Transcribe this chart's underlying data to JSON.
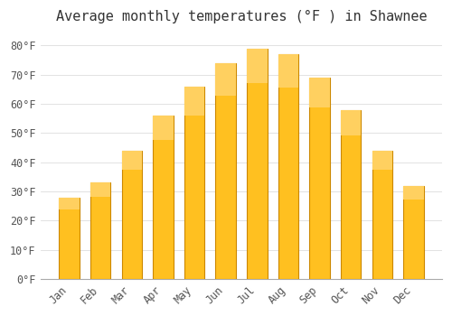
{
  "title": "Average monthly temperatures (°F ) in Shawnee",
  "months": [
    "Jan",
    "Feb",
    "Mar",
    "Apr",
    "May",
    "Jun",
    "Jul",
    "Aug",
    "Sep",
    "Oct",
    "Nov",
    "Dec"
  ],
  "values": [
    28,
    33,
    44,
    56,
    66,
    74,
    79,
    77,
    69,
    58,
    44,
    32
  ],
  "bar_color_top": "#FFA500",
  "bar_color_bottom": "#FFB732",
  "bar_edge_color": "#CC8800",
  "background_color": "#FFFFFF",
  "plot_bg_color": "#FFFFFF",
  "grid_color": "#DDDDDD",
  "ylim": [
    0,
    85
  ],
  "yticks": [
    0,
    10,
    20,
    30,
    40,
    50,
    60,
    70,
    80
  ],
  "ytick_labels": [
    "0°F",
    "10°F",
    "20°F",
    "30°F",
    "40°F",
    "50°F",
    "60°F",
    "70°F",
    "80°F"
  ],
  "title_fontsize": 11,
  "tick_fontsize": 8.5,
  "title_color": "#333333",
  "tick_color": "#555555"
}
